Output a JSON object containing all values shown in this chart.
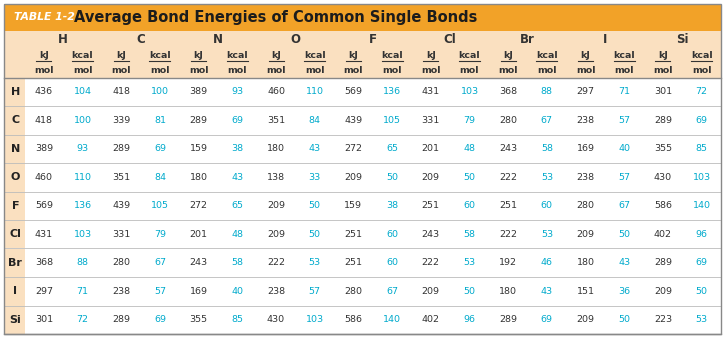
{
  "title_prefix": "TABLE 1-2",
  "title_text": "Average Bond Energies of Common Single Bonds",
  "title_bg": "#F2A228",
  "header_bg": "#FAE0C0",
  "row_bg": "#FFFFFF",
  "row_label_bg": "#FAE0C0",
  "divider_color": "#BBBBBB",
  "border_color": "#999999",
  "col_headers": [
    "H",
    "C",
    "N",
    "O",
    "F",
    "Cl",
    "Br",
    "I",
    "Si"
  ],
  "row_headers": [
    "H",
    "C",
    "N",
    "O",
    "F",
    "Cl",
    "Br",
    "I",
    "Si"
  ],
  "kj_color": "#333333",
  "kcal_color": "#00AACC",
  "header_text_color": "#333333",
  "data": [
    [
      436,
      104,
      418,
      100,
      389,
      93,
      460,
      110,
      569,
      136,
      431,
      103,
      368,
      88,
      297,
      71,
      301,
      72
    ],
    [
      418,
      100,
      339,
      81,
      289,
      69,
      351,
      84,
      439,
      105,
      331,
      79,
      280,
      67,
      238,
      57,
      289,
      69
    ],
    [
      389,
      93,
      289,
      69,
      159,
      38,
      180,
      43,
      272,
      65,
      201,
      48,
      243,
      58,
      169,
      40,
      355,
      85
    ],
    [
      460,
      110,
      351,
      84,
      180,
      43,
      138,
      33,
      209,
      50,
      209,
      50,
      222,
      53,
      238,
      57,
      430,
      103
    ],
    [
      569,
      136,
      439,
      105,
      272,
      65,
      209,
      50,
      159,
      38,
      251,
      60,
      251,
      60,
      280,
      67,
      586,
      140
    ],
    [
      431,
      103,
      331,
      79,
      201,
      48,
      209,
      50,
      251,
      60,
      243,
      58,
      222,
      53,
      209,
      50,
      402,
      96
    ],
    [
      368,
      88,
      280,
      67,
      243,
      58,
      222,
      53,
      251,
      60,
      222,
      53,
      192,
      46,
      180,
      43,
      289,
      69
    ],
    [
      297,
      71,
      238,
      57,
      169,
      40,
      238,
      57,
      280,
      67,
      209,
      50,
      180,
      43,
      151,
      36,
      209,
      50
    ],
    [
      301,
      72,
      289,
      69,
      355,
      85,
      430,
      103,
      586,
      140,
      402,
      96,
      289,
      69,
      209,
      50,
      223,
      53
    ]
  ],
  "fig_width": 7.25,
  "fig_height": 3.38,
  "dpi": 100
}
